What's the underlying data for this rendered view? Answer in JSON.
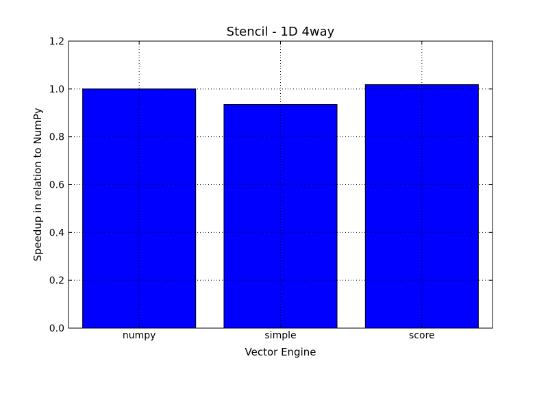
{
  "chart_data": {
    "type": "bar",
    "title": "Stencil - 1D 4way",
    "xlabel": "Vector Engine",
    "ylabel": "Speedup in relation to NumPy",
    "categories": [
      "numpy",
      "simple",
      "score"
    ],
    "values": [
      1.0,
      0.935,
      1.018
    ],
    "ylim": [
      0,
      1.2
    ],
    "yticks": [
      "0.0",
      "0.2",
      "0.4",
      "0.6",
      "0.8",
      "1.0",
      "1.2"
    ],
    "grid": true,
    "legend": "none",
    "bar_color": "#0000ff"
  }
}
